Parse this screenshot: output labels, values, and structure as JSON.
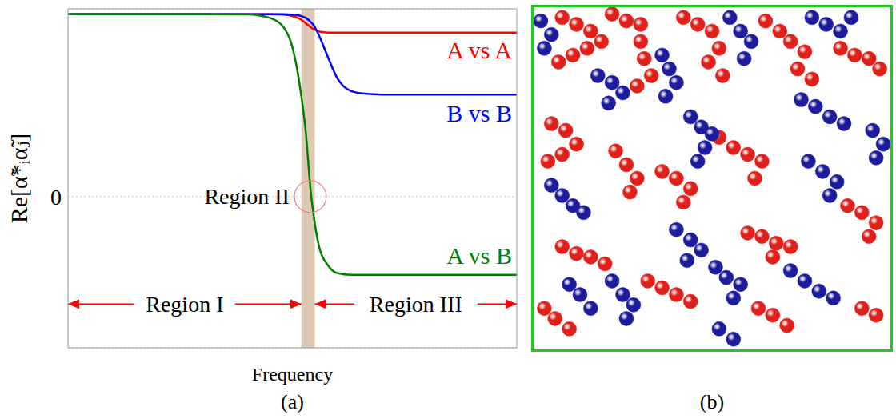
{
  "chart_data": [
    {
      "type": "line",
      "label": "(a)",
      "xlabel": "Frequency",
      "ylabel": "Re[α̃*ᵢα̃ⱼ]",
      "x": [
        0,
        1,
        2,
        3,
        4,
        4.5,
        4.8,
        5.0,
        5.2,
        5.3,
        5.4,
        5.5,
        5.6,
        5.8,
        6.0,
        6.3,
        6.6,
        7,
        8,
        9,
        10
      ],
      "series": [
        {
          "name": "A vs A",
          "color": "#ff0000",
          "values": [
            1,
            1,
            1,
            1,
            1,
            1,
            0.998,
            0.99,
            0.97,
            0.95,
            0.93,
            0.915,
            0.905,
            0.9,
            0.9,
            0.9,
            0.9,
            0.9,
            0.9,
            0.9,
            0.9
          ]
        },
        {
          "name": "B vs B",
          "color": "#0000ff",
          "values": [
            1,
            1,
            1,
            1,
            1,
            1,
            1,
            0.998,
            0.99,
            0.98,
            0.96,
            0.93,
            0.88,
            0.76,
            0.65,
            0.58,
            0.565,
            0.56,
            0.56,
            0.56,
            0.56
          ]
        },
        {
          "name": "A vs B",
          "color": "#008000",
          "values": [
            1,
            1,
            1,
            1,
            0.999,
            0.98,
            0.93,
            0.82,
            0.55,
            0.35,
            0.05,
            -0.15,
            -0.28,
            -0.38,
            -0.42,
            -0.43,
            -0.43,
            -0.43,
            -0.43,
            -0.43,
            -0.43
          ]
        }
      ],
      "xlim": [
        0,
        10
      ],
      "ylim": [
        -0.83,
        1.03
      ],
      "yticks": [
        0
      ],
      "grid": true,
      "tick_labels": "y",
      "band": [
        5.2,
        5.5
      ],
      "annotations": [
        {
          "text": "Region I",
          "x": [
            0,
            5.2
          ],
          "y": -0.59,
          "color": "#ff0000"
        },
        {
          "text": "Region II",
          "x": 5.4,
          "y": 0,
          "color": "#f08080"
        },
        {
          "text": "Region III",
          "x": [
            5.5,
            10
          ],
          "y": -0.59,
          "color": "#ff0000"
        }
      ]
    },
    {
      "type": "scatter",
      "label": "(b)",
      "marker": "circle",
      "tick_labels": false,
      "xlim": [
        0,
        100
      ],
      "ylim": [
        0,
        100
      ],
      "series": [
        {
          "color": "#e0201a",
          "x": [
            8,
            12,
            16,
            15,
            11,
            7,
            19,
            22,
            26,
            30,
            30,
            31,
            33,
            29,
            42,
            46,
            50,
            52,
            49,
            53,
            65,
            69,
            72,
            76,
            74,
            78,
            86,
            90,
            94,
            97,
            5,
            9,
            12,
            8,
            4,
            23,
            26,
            29,
            27,
            36,
            40,
            44,
            42,
            52,
            56,
            60,
            64,
            62,
            60,
            64,
            68,
            72,
            67,
            8,
            12,
            16,
            20,
            3,
            6,
            10,
            32,
            36,
            40,
            44,
            63,
            67,
            71,
            88,
            92,
            96,
            94,
            92,
            96
          ],
          "y": [
            97,
            95,
            93,
            88,
            86,
            84,
            90,
            98,
            96,
            95,
            90,
            85,
            80,
            77,
            97,
            95,
            93,
            88,
            84,
            80,
            96,
            93,
            90,
            87,
            82,
            79,
            88,
            86,
            85,
            82,
            66,
            64,
            60,
            57,
            55,
            58,
            54,
            50,
            46,
            52,
            50,
            47,
            43,
            62,
            59,
            57,
            55,
            50,
            34,
            33,
            31,
            30,
            27,
            30,
            28,
            27,
            25,
            12,
            9,
            6,
            20,
            18,
            16,
            14,
            12,
            10,
            7,
            42,
            40,
            37,
            33,
            12,
            10
          ]
        },
        {
          "color": "#1c1c9c",
          "x": [
            2,
            5,
            3,
            18,
            22,
            25,
            21,
            36,
            38,
            40,
            37,
            55,
            58,
            61,
            59,
            78,
            82,
            86,
            89,
            75,
            79,
            83,
            87,
            5,
            8,
            11,
            14,
            44,
            47,
            50,
            48,
            46,
            40,
            44,
            47,
            43,
            22,
            25,
            28,
            26,
            51,
            54,
            58,
            56,
            77,
            81,
            85,
            83,
            72,
            76,
            80,
            84,
            95,
            98,
            96,
            10,
            13,
            16,
            52,
            56
          ],
          "y": [
            96,
            92,
            88,
            80,
            78,
            75,
            72,
            86,
            82,
            78,
            74,
            97,
            93,
            90,
            85,
            97,
            95,
            93,
            97,
            73,
            71,
            68,
            66,
            48,
            45,
            42,
            40,
            68,
            65,
            63,
            59,
            55,
            35,
            32,
            29,
            26,
            20,
            16,
            13,
            9,
            24,
            21,
            19,
            15,
            55,
            52,
            49,
            45,
            23,
            20,
            17,
            15,
            64,
            60,
            56,
            19,
            16,
            12,
            6,
            3
          ]
        }
      ]
    }
  ]
}
